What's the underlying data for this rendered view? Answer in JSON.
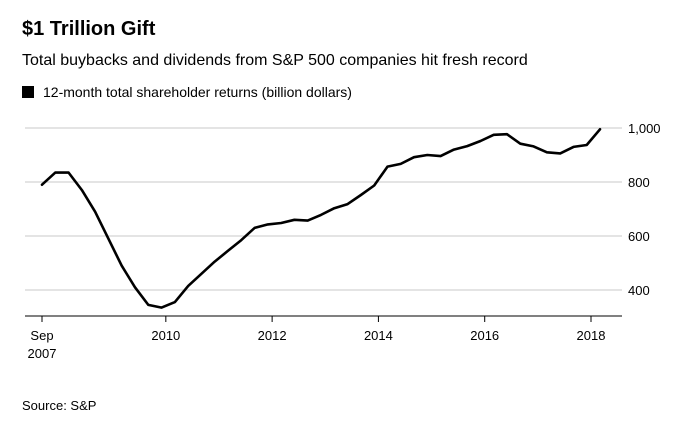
{
  "chart_data": {
    "type": "line",
    "title": "$1 Trillion Gift",
    "subtitle": "Total buybacks and dividends from S&P 500 companies hit fresh record",
    "legend": [
      "12-month total shareholder returns (billion dollars)"
    ],
    "source": "Source: S&P",
    "xlabel": "",
    "ylabel": "",
    "ylim": [
      320,
      1000
    ],
    "xlim": [
      2007.5,
      2018.6
    ],
    "grid": true,
    "y_ticks": [
      {
        "value": 400,
        "label": "400"
      },
      {
        "value": 600,
        "label": "600"
      },
      {
        "value": 800,
        "label": "800"
      },
      {
        "value": 1000,
        "label": "1,000"
      }
    ],
    "x_ticks": [
      {
        "value": 2007.67,
        "label": "Sep",
        "sublabel": "2007"
      },
      {
        "value": 2010,
        "label": "2010"
      },
      {
        "value": 2012,
        "label": "2012"
      },
      {
        "value": 2014,
        "label": "2014"
      },
      {
        "value": 2016,
        "label": "2016"
      },
      {
        "value": 2018,
        "label": "2018"
      }
    ],
    "series": [
      {
        "name": "12-month total shareholder returns (billion dollars)",
        "color": "#000000",
        "points": [
          [
            2007.67,
            790
          ],
          [
            2007.92,
            835
          ],
          [
            2008.17,
            835
          ],
          [
            2008.42,
            770
          ],
          [
            2008.67,
            690
          ],
          [
            2008.92,
            590
          ],
          [
            2009.17,
            490
          ],
          [
            2009.42,
            410
          ],
          [
            2009.67,
            345
          ],
          [
            2009.92,
            335
          ],
          [
            2010.17,
            355
          ],
          [
            2010.42,
            415
          ],
          [
            2010.67,
            460
          ],
          [
            2010.92,
            505
          ],
          [
            2011.17,
            545
          ],
          [
            2011.42,
            585
          ],
          [
            2011.67,
            630
          ],
          [
            2011.92,
            643
          ],
          [
            2012.17,
            648
          ],
          [
            2012.42,
            660
          ],
          [
            2012.67,
            657
          ],
          [
            2012.92,
            678
          ],
          [
            2013.17,
            703
          ],
          [
            2013.42,
            718
          ],
          [
            2013.67,
            752
          ],
          [
            2013.92,
            787
          ],
          [
            2014.17,
            857
          ],
          [
            2014.42,
            867
          ],
          [
            2014.67,
            892
          ],
          [
            2014.92,
            900
          ],
          [
            2015.17,
            896
          ],
          [
            2015.42,
            920
          ],
          [
            2015.67,
            933
          ],
          [
            2015.92,
            952
          ],
          [
            2016.17,
            975
          ],
          [
            2016.42,
            977
          ],
          [
            2016.67,
            942
          ],
          [
            2016.92,
            932
          ],
          [
            2017.17,
            910
          ],
          [
            2017.42,
            906
          ],
          [
            2017.67,
            930
          ],
          [
            2017.92,
            937
          ],
          [
            2018.17,
            995
          ]
        ]
      }
    ]
  }
}
